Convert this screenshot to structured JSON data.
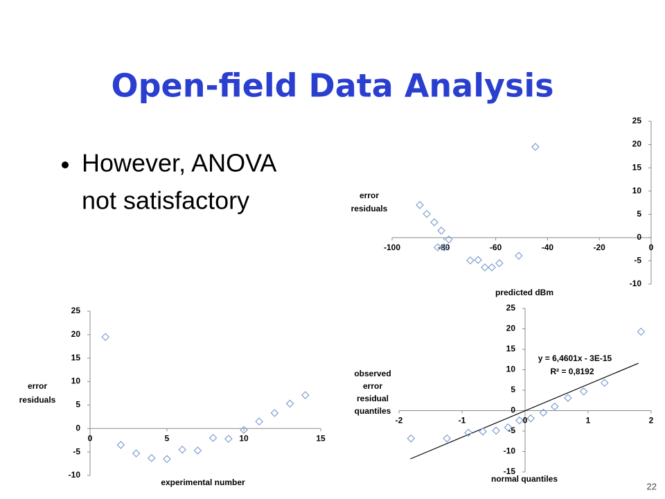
{
  "slide": {
    "title": "Open-field Data Analysis",
    "bullet": [
      "However, ANOVA",
      "not satisfactory"
    ],
    "page_number": "22"
  },
  "chart_data": [
    {
      "type": "scatter",
      "xlabel": "predicted dBm",
      "ylabel": [
        "error",
        "residuals"
      ],
      "color": "#7f9fd0",
      "x": [
        -89.3,
        -86.6,
        -83.7,
        -81.0,
        -78.1,
        -82.4,
        -79.9,
        -69.8,
        -66.8,
        -64.2,
        -61.5,
        -58.6,
        -51.1,
        -44.7
      ],
      "values": [
        7.0,
        5.1,
        3.3,
        1.5,
        -0.4,
        -2.1,
        -2.1,
        -4.9,
        -4.8,
        -6.4,
        -6.4,
        -5.5,
        -3.9,
        19.5
      ],
      "xlim": [
        -100,
        0
      ],
      "xticks": [
        -100,
        -80,
        -60,
        -40,
        -20,
        0
      ],
      "ylim": [
        -10,
        25
      ],
      "yticks": [
        -10,
        -5,
        0,
        5,
        10,
        15,
        20,
        25
      ]
    },
    {
      "type": "scatter",
      "xlabel": "experimental number",
      "ylabel": [
        "error",
        "residuals"
      ],
      "color": "#7f9fd0",
      "x": [
        1,
        2,
        3,
        4,
        5,
        6,
        7,
        8,
        9,
        10,
        11,
        12,
        13,
        14
      ],
      "values": [
        19.5,
        -3.5,
        -5.3,
        -6.3,
        -6.5,
        -4.5,
        -4.7,
        -2.0,
        -2.2,
        -0.3,
        1.5,
        3.3,
        5.3,
        7.1
      ],
      "xlim": [
        0,
        15
      ],
      "xticks": [
        0,
        5,
        10,
        15
      ],
      "ylim": [
        -10,
        25
      ],
      "yticks": [
        -10,
        -5,
        0,
        5,
        10,
        15,
        20,
        25
      ]
    },
    {
      "type": "scatter",
      "xlabel": "normal quantiles",
      "ylabel": [
        "observed",
        "error",
        "residual",
        "quantiles"
      ],
      "color": "#7f9fd0",
      "x": [
        -1.81,
        -1.24,
        -0.9,
        -0.67,
        -0.46,
        -0.27,
        -0.09,
        0.09,
        0.29,
        0.47,
        0.68,
        0.93,
        1.26,
        1.84
      ],
      "values": [
        -6.8,
        -6.8,
        -5.4,
        -5.1,
        -4.9,
        -4.1,
        -2.4,
        -1.9,
        -0.5,
        1.0,
        3.1,
        4.7,
        6.8,
        19.3
      ],
      "xlim": [
        -2,
        2
      ],
      "xticks": [
        -2,
        -1,
        0,
        1,
        2
      ],
      "ylim": [
        -15,
        25
      ],
      "yticks": [
        -15,
        -10,
        -5,
        0,
        5,
        10,
        15,
        20,
        25
      ],
      "trendline": {
        "x": [
          -1.82,
          1.8
        ],
        "y": [
          -11.8,
          11.6
        ],
        "color": "#000000"
      },
      "annotations": [
        "y = 6,4601x - 3E-15",
        "R² = 0,8192"
      ]
    }
  ]
}
